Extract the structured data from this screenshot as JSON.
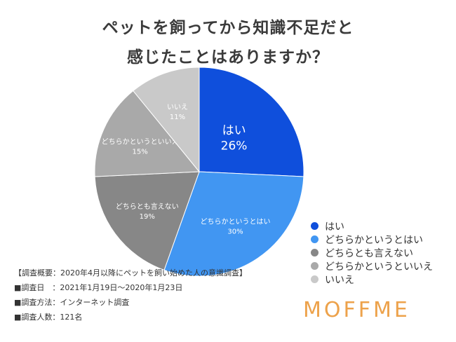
{
  "title_lines": [
    "ペットを飼ってから知識不足だと",
    "感じたことはありますか？"
  ],
  "chart_data": {
    "type": "pie",
    "title": "ペットを飼ってから知識不足だと感じたことはありますか？",
    "categories": [
      "はい",
      "どちらかというとはい",
      "どちらとも言えない",
      "どちらかというといいえ",
      "いいえ"
    ],
    "values": [
      26,
      30,
      19,
      15,
      11
    ],
    "value_labels": [
      "26%",
      "30%",
      "19%",
      "15%",
      "11%"
    ],
    "colors": [
      "#0f4fdc",
      "#4196f2",
      "#878787",
      "#a9a9a9",
      "#c9c9c9"
    ],
    "label_colors": [
      "#ffffff",
      "#ffffff",
      "#ffffff",
      "#ffffff",
      "#ffffff"
    ],
    "start_angle_deg": 0,
    "direction": "clockwise",
    "legend_position": "bottom-right"
  },
  "survey_info": [
    "【調査概要：2020年4月以降にペットを飼い始めた人の意識調査】",
    "■調査日　：2021年1月19日〜2020年1月23日",
    "■調査方法：インターネット調査",
    "■調査人数：121名"
  ],
  "brand": "MOFFME"
}
